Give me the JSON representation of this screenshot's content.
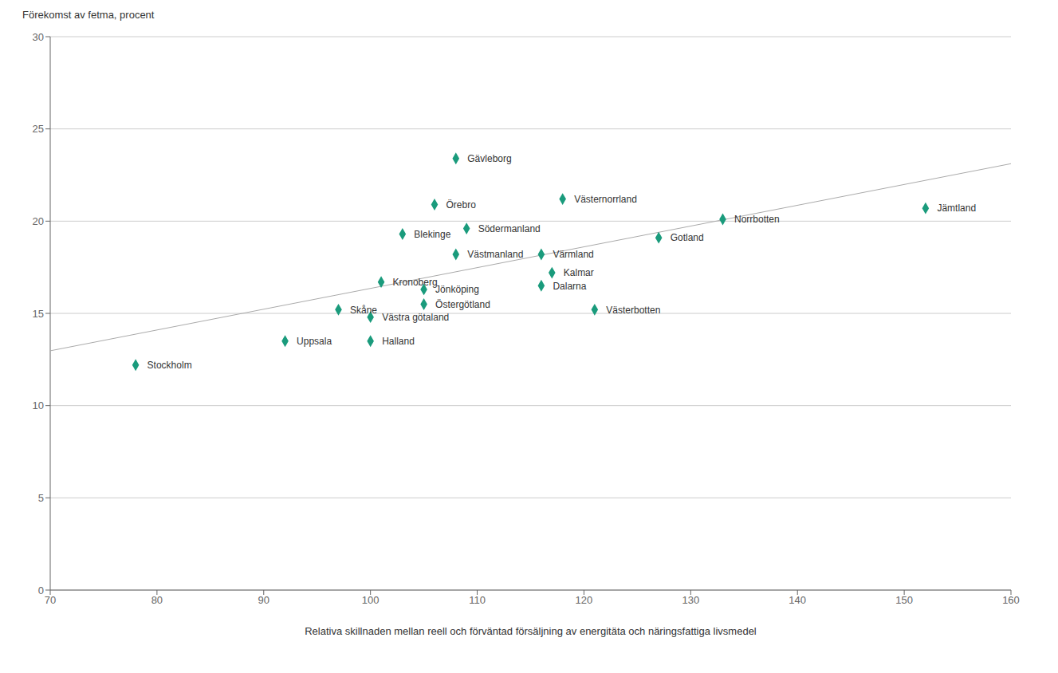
{
  "chart_data": {
    "type": "scatter",
    "xlabel": "Relativa skillnaden mellan reell och förväntad försäljning av energitäta och näringsfattiga livsmedel",
    "ylabel": "Förekomst av fetma, procent",
    "xlim": [
      70,
      160
    ],
    "ylim": [
      0,
      30
    ],
    "xticks": [
      70,
      80,
      90,
      100,
      110,
      120,
      130,
      140,
      150,
      160
    ],
    "yticks": [
      0,
      5,
      10,
      15,
      20,
      25,
      30
    ],
    "grid": "y",
    "series": [
      {
        "type": "line",
        "color": "#aaaaaa",
        "line_style": "solid",
        "x": [
          70,
          160
        ],
        "values": [
          12.97213,
          23.11426
        ]
      },
      {
        "type": "scatter",
        "color": "#1a9b7c",
        "marker": "diamond",
        "x": [
          78,
          92,
          97,
          100,
          100,
          101,
          103,
          105,
          105,
          106,
          108,
          108,
          109,
          116,
          116,
          117,
          118,
          121,
          127,
          133,
          152
        ],
        "values": [
          12.2,
          13.5,
          15.2,
          13.5,
          14.8,
          16.7,
          19.3,
          16.3,
          15.5,
          20.9,
          23.4,
          18.2,
          19.6,
          16.5,
          18.2,
          17.2,
          21.2,
          15.2,
          19.1,
          20.1,
          20.7
        ],
        "labels": [
          "Stockholm",
          "Uppsala",
          "Skåne",
          "Halland",
          "Västra götaland",
          "Kronoberg",
          "Blekinge",
          "Jönköping",
          "Östergötland",
          "Örebro",
          "Gävleborg",
          "Västmanland",
          "Södermanland",
          "Dalarna",
          "Värmland",
          "Kalmar",
          "Västernorrland",
          "Västerbotten",
          "Gotland",
          "Norrbotten",
          "Jämtland"
        ]
      }
    ]
  }
}
